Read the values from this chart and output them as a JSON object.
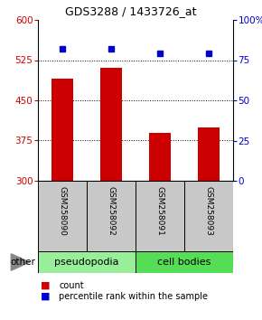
{
  "title": "GDS3288 / 1433726_at",
  "samples": [
    "GSM258090",
    "GSM258092",
    "GSM258091",
    "GSM258093"
  ],
  "count_values": [
    490,
    510,
    390,
    400
  ],
  "percentile_values": [
    82,
    82,
    79,
    79
  ],
  "ylim_left": [
    300,
    600
  ],
  "ylim_right": [
    0,
    100
  ],
  "yticks_left": [
    300,
    375,
    450,
    525,
    600
  ],
  "yticks_right": [
    0,
    25,
    50,
    75,
    100
  ],
  "bar_color": "#cc0000",
  "dot_color": "#0000cc",
  "groups": [
    {
      "label": "pseudopodia",
      "samples": [
        0,
        1
      ],
      "color": "#99ee99"
    },
    {
      "label": "cell bodies",
      "samples": [
        2,
        3
      ],
      "color": "#55dd55"
    }
  ],
  "other_label": "other",
  "legend_count_label": "count",
  "legend_percentile_label": "percentile rank within the sample",
  "background_sample_row": "#c8c8c8",
  "left_tick_color": "#cc0000",
  "right_tick_color": "#0000cc",
  "title_fontsize": 9,
  "tick_fontsize": 7.5,
  "sample_fontsize": 6.5,
  "group_fontsize": 8
}
